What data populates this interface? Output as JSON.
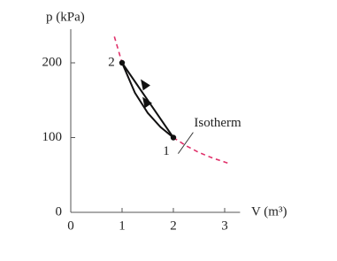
{
  "chart_data": {
    "type": "line",
    "y_label": "p (kPa)",
    "x_label": "V (m³)",
    "xlim": [
      0,
      3.3
    ],
    "ylim": [
      0,
      245
    ],
    "xticks": [
      0,
      1,
      2,
      3
    ],
    "yticks": [
      0,
      100,
      200
    ],
    "series": [
      {
        "color": "#e0306a",
        "dashed": true,
        "x": [
          0.85,
          1,
          1.25,
          1.5,
          1.75,
          2,
          2.25,
          2.5,
          2.75,
          3.1
        ],
        "values": [
          235,
          200,
          160,
          133,
          114,
          100,
          89,
          80,
          73,
          65
        ]
      },
      {
        "color": "#111111",
        "dashed": false,
        "x": [
          2,
          1
        ],
        "values": [
          100,
          200
        ]
      },
      {
        "color": "#111111",
        "dashed": false,
        "x": [
          2,
          1.75,
          1.5,
          1.25,
          1
        ],
        "values": [
          100,
          114,
          133,
          160,
          200
        ]
      }
    ],
    "points": {
      "x": [
        2,
        1
      ],
      "values": [
        100,
        200
      ],
      "labels": [
        "1",
        "2"
      ]
    },
    "annotation": {
      "text": "Isotherm",
      "x": 2.3,
      "y": 88
    }
  }
}
